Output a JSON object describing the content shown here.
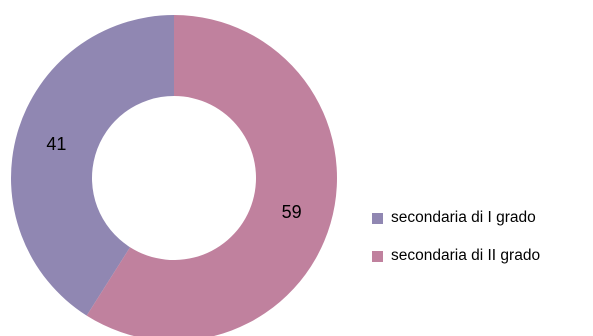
{
  "chart_data": {
    "type": "pie",
    "title": "",
    "categories": [
      "secondaria di I grado",
      "secondaria di II grado"
    ],
    "values": [
      41,
      59
    ],
    "colors": [
      "#9087b2",
      "#c0819e"
    ],
    "donut": true,
    "legend_position": "right"
  }
}
